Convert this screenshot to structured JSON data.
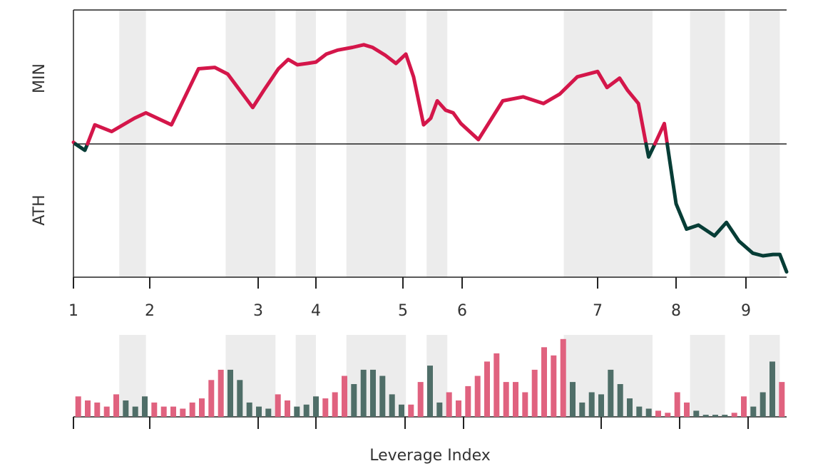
{
  "chart_data": [
    {
      "type": "line",
      "title": "",
      "xlabel": "Leverage Index",
      "ylabel_top": "MIN",
      "ylabel_bottom": "ATH",
      "x_ticks": [
        "1",
        "2",
        "3",
        "4",
        "5",
        "6",
        "7",
        "8",
        "9"
      ],
      "xlim": [
        1,
        9.6
      ],
      "ylim": [
        -1,
        1
      ],
      "baseline": 0,
      "colors": {
        "above": "#d4164a",
        "below": "#073d36",
        "band": "#ececec"
      },
      "shaded_bands": [
        [
          1.6,
          1.95
        ],
        [
          2.7,
          3.3
        ],
        [
          3.65,
          4.0
        ],
        [
          4.35,
          5.05
        ],
        [
          5.4,
          5.75
        ],
        [
          6.75,
          7.7
        ],
        [
          8.2,
          8.7
        ],
        [
          9.05,
          9.5
        ]
      ],
      "series": [
        {
          "x": [
            1.0,
            1.15,
            1.28,
            1.5,
            1.62,
            1.8,
            1.95,
            2.2,
            2.45,
            2.6,
            2.72,
            2.95,
            3.1,
            3.35,
            3.52,
            3.68,
            3.85,
            4.0,
            4.12,
            4.25,
            4.42,
            4.55,
            4.65,
            4.8,
            4.92,
            5.05,
            5.18,
            5.35,
            5.47,
            5.58,
            5.72,
            5.85,
            5.98,
            6.12,
            6.3,
            6.45,
            6.6,
            6.72,
            6.85,
            7.0,
            7.12,
            7.28,
            7.38,
            7.52,
            7.65,
            7.85,
            8.0,
            8.15,
            8.32,
            8.55,
            8.72,
            8.9,
            9.1,
            9.25,
            9.4,
            9.5,
            9.6
          ],
          "y": [
            0.01,
            -0.05,
            0.14,
            0.09,
            0.13,
            0.19,
            0.23,
            0.14,
            0.56,
            0.57,
            0.52,
            0.27,
            0.4,
            0.56,
            0.63,
            0.59,
            0.6,
            0.61,
            0.67,
            0.7,
            0.72,
            0.74,
            0.72,
            0.66,
            0.6,
            0.67,
            0.5,
            0.14,
            0.19,
            0.32,
            0.25,
            0.23,
            0.15,
            0.03,
            0.32,
            0.35,
            0.3,
            0.37,
            0.5,
            0.54,
            0.42,
            0.49,
            0.4,
            0.3,
            -0.1,
            0.15,
            -0.45,
            -0.64,
            -0.61,
            -0.69,
            -0.59,
            -0.73,
            -0.82,
            -0.84,
            -0.83,
            -0.83,
            -0.96
          ]
        }
      ]
    },
    {
      "type": "bar",
      "title": "",
      "xlabel": "Leverage Index",
      "x_ticks": [
        "1",
        "2",
        "3",
        "4",
        "5",
        "6",
        "7",
        "8",
        "9"
      ],
      "ylim": [
        0,
        4
      ],
      "values": [
        1.0,
        0.8,
        0.7,
        0.5,
        1.1,
        0.8,
        0.5,
        1.0,
        0.7,
        0.5,
        0.5,
        0.4,
        0.7,
        0.9,
        1.8,
        2.3,
        2.3,
        1.8,
        0.7,
        0.5,
        0.4,
        1.1,
        0.8,
        0.5,
        0.6,
        1.0,
        0.9,
        1.2,
        2.0,
        1.6,
        2.3,
        2.3,
        2.0,
        1.1,
        0.6,
        0.6,
        1.7,
        2.5,
        0.7,
        1.2,
        0.8,
        1.5,
        2.0,
        2.7,
        3.1,
        1.7,
        1.7,
        1.2,
        2.3,
        3.4,
        3.0,
        3.8,
        1.7,
        0.7,
        1.2,
        1.1,
        2.3,
        1.6,
        0.9,
        0.5,
        0.4,
        0.3,
        0.2,
        1.2,
        0.7,
        0.3,
        0.1,
        0.1,
        0.1,
        0.2,
        1.0,
        0.5,
        1.2,
        2.7,
        1.7
      ],
      "bar_colors_key": {
        "positive": "#e0627f",
        "negative": "#4f6e68"
      }
    }
  ]
}
